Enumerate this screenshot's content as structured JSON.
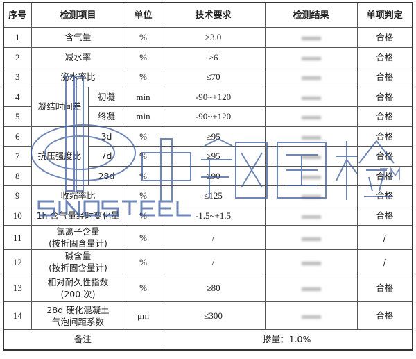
{
  "headers": [
    "序号",
    "检测项目",
    "单位",
    "技术要求",
    "检测结果",
    "单项判定"
  ],
  "rows": [
    {
      "no": "1",
      "item": "含气量",
      "unit": "%",
      "req": "≥3.0",
      "result": "",
      "judge": "合格"
    },
    {
      "no": "2",
      "item": "减水率",
      "unit": "%",
      "req": "≥6",
      "result": "",
      "judge": "合格"
    },
    {
      "no": "3",
      "item": "泌水率比",
      "unit": "%",
      "req": "≤70",
      "result": "",
      "judge": "合格"
    },
    {
      "no": "4",
      "group": "凝结时间差",
      "sub": "初凝",
      "unit": "min",
      "req": "-90~+120",
      "result": "",
      "judge": "合格"
    },
    {
      "no": "5",
      "sub": "终凝",
      "unit": "min",
      "req": "-90~+120",
      "result": "",
      "judge": "合格"
    },
    {
      "no": "6",
      "group": "抗压强度比",
      "sub": "3d",
      "unit": "%",
      "req": "≥95",
      "result": "",
      "judge": "合格"
    },
    {
      "no": "7",
      "sub": "7d",
      "unit": "%",
      "req": "≥95",
      "result": "",
      "judge": "合格"
    },
    {
      "no": "8",
      "sub": "28d",
      "unit": "%",
      "req": "≥90",
      "result": "",
      "judge": "合格"
    },
    {
      "no": "9",
      "item": "收缩率比",
      "unit": "%",
      "req": "≤125",
      "result": "",
      "judge": "合格"
    },
    {
      "no": "10",
      "item": "1h 含气量经时变化量",
      "unit": "%",
      "req": "-1.5~+1.5",
      "result": "",
      "judge": "合格"
    },
    {
      "no": "11",
      "item": "氯离子含量",
      "item2": "(按折固含量计)",
      "unit": "%",
      "req": "/",
      "result": "",
      "judge": "/"
    },
    {
      "no": "12",
      "item": "碱含量",
      "item2": "(按折固含量计)",
      "unit": "%",
      "req": "/",
      "result": "",
      "judge": "/"
    },
    {
      "no": "13",
      "item": "相对耐久性指数",
      "item2": "(200 次)",
      "unit": "%",
      "req": "≥80",
      "result": "",
      "judge": "合格"
    },
    {
      "no": "14",
      "item": "28d 硬化混凝土",
      "item2": "气泡间距系数",
      "unit": "μm",
      "req": "≤300",
      "result": "",
      "judge": "合格"
    }
  ],
  "footer": {
    "label": "备注",
    "note": "掺量：1.0%"
  },
  "watermark": {
    "text": "中钢国检",
    "brand": "SINOSTEEL",
    "tm": "TM",
    "color": "#3f5f9f"
  }
}
